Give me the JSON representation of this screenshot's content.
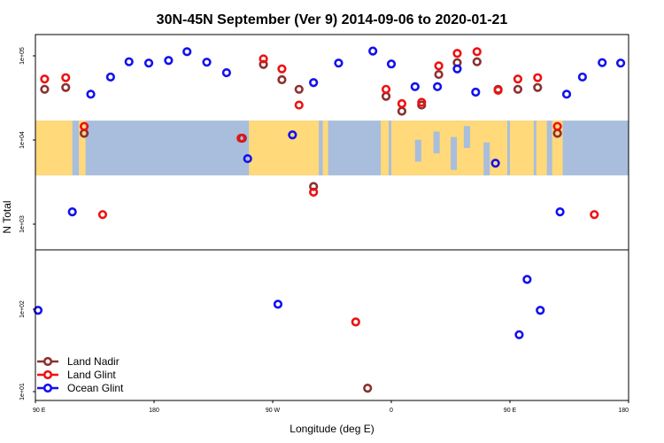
{
  "chart_data": {
    "type": "scatter",
    "title": "30N-45N September (Ver 9)   2014-09-06 to 2020-01-21",
    "xlabel": "Longitude (deg E)",
    "ylabel": "N Total",
    "x_ticks": [
      {
        "value": 90,
        "label": "90 E"
      },
      {
        "value": 180,
        "label": "180"
      },
      {
        "value": 270,
        "label": "90 W"
      },
      {
        "value": 360,
        "label": "0"
      },
      {
        "value": 450,
        "label": "90 E"
      },
      {
        "value": 540,
        "label": "180"
      }
    ],
    "xlim": [
      90,
      540
    ],
    "y_scale": "log",
    "y_ticks": [
      {
        "value": 10,
        "label": "1e+01"
      },
      {
        "value": 100,
        "label": "1e+02"
      },
      {
        "value": 1000,
        "label": "1e+03"
      },
      {
        "value": 10000,
        "label": "1e+04"
      },
      {
        "value": 100000,
        "label": "1e+05"
      }
    ],
    "split_value": 300,
    "map_band": {
      "y_min": 3800,
      "y_max": 17000,
      "land_color": "#ffd97a",
      "ocean_color": "#a8bedc"
    },
    "legend_position": "bottom-left",
    "series": [
      {
        "name": "Land Nadir",
        "color": "#8b3030",
        "points": [
          [
            97,
            40000
          ],
          [
            113,
            42000
          ],
          [
            127,
            12000
          ],
          [
            247,
            10500
          ],
          [
            263,
            79000
          ],
          [
            277,
            52000
          ],
          [
            290,
            40000
          ],
          [
            301,
            2800
          ],
          [
            342,
            11
          ],
          [
            356,
            33000
          ],
          [
            368,
            22000
          ],
          [
            383,
            26000
          ],
          [
            396,
            60000
          ],
          [
            410,
            83000
          ],
          [
            425,
            85000
          ],
          [
            441,
            40000
          ],
          [
            456,
            40000
          ],
          [
            471,
            42000
          ],
          [
            486,
            12000
          ]
        ]
      },
      {
        "name": "Land Glint",
        "color": "#ee1111",
        "points": [
          [
            97,
            53000
          ],
          [
            113,
            55000
          ],
          [
            127,
            14500
          ],
          [
            141,
            1300
          ],
          [
            246,
            10500
          ],
          [
            263,
            92000
          ],
          [
            277,
            70000
          ],
          [
            290,
            26000
          ],
          [
            301,
            2400
          ],
          [
            333,
            70
          ],
          [
            356,
            40000
          ],
          [
            368,
            27000
          ],
          [
            383,
            28000
          ],
          [
            396,
            76000
          ],
          [
            410,
            107000
          ],
          [
            425,
            112000
          ],
          [
            441,
            39000
          ],
          [
            456,
            53000
          ],
          [
            471,
            55000
          ],
          [
            486,
            14500
          ],
          [
            514,
            1300
          ]
        ]
      },
      {
        "name": "Ocean Glint",
        "color": "#1111ee",
        "points": [
          [
            92,
            97
          ],
          [
            118,
            1400
          ],
          [
            132,
            35000
          ],
          [
            147,
            56000
          ],
          [
            161,
            85000
          ],
          [
            176,
            82000
          ],
          [
            191,
            88000
          ],
          [
            205,
            112000
          ],
          [
            220,
            84000
          ],
          [
            235,
            63000
          ],
          [
            251,
            6000
          ],
          [
            274,
            115
          ],
          [
            285,
            11500
          ],
          [
            301,
            48000
          ],
          [
            320,
            82000
          ],
          [
            346,
            114000
          ],
          [
            360,
            80000
          ],
          [
            378,
            43000
          ],
          [
            395,
            43000
          ],
          [
            410,
            70000
          ],
          [
            424,
            37000
          ],
          [
            439,
            5300
          ],
          [
            457,
            49
          ],
          [
            463,
            230
          ],
          [
            473,
            97
          ],
          [
            488,
            1400
          ],
          [
            493,
            35000
          ],
          [
            505,
            56000
          ],
          [
            520,
            83000
          ],
          [
            534,
            82000
          ]
        ]
      }
    ]
  }
}
